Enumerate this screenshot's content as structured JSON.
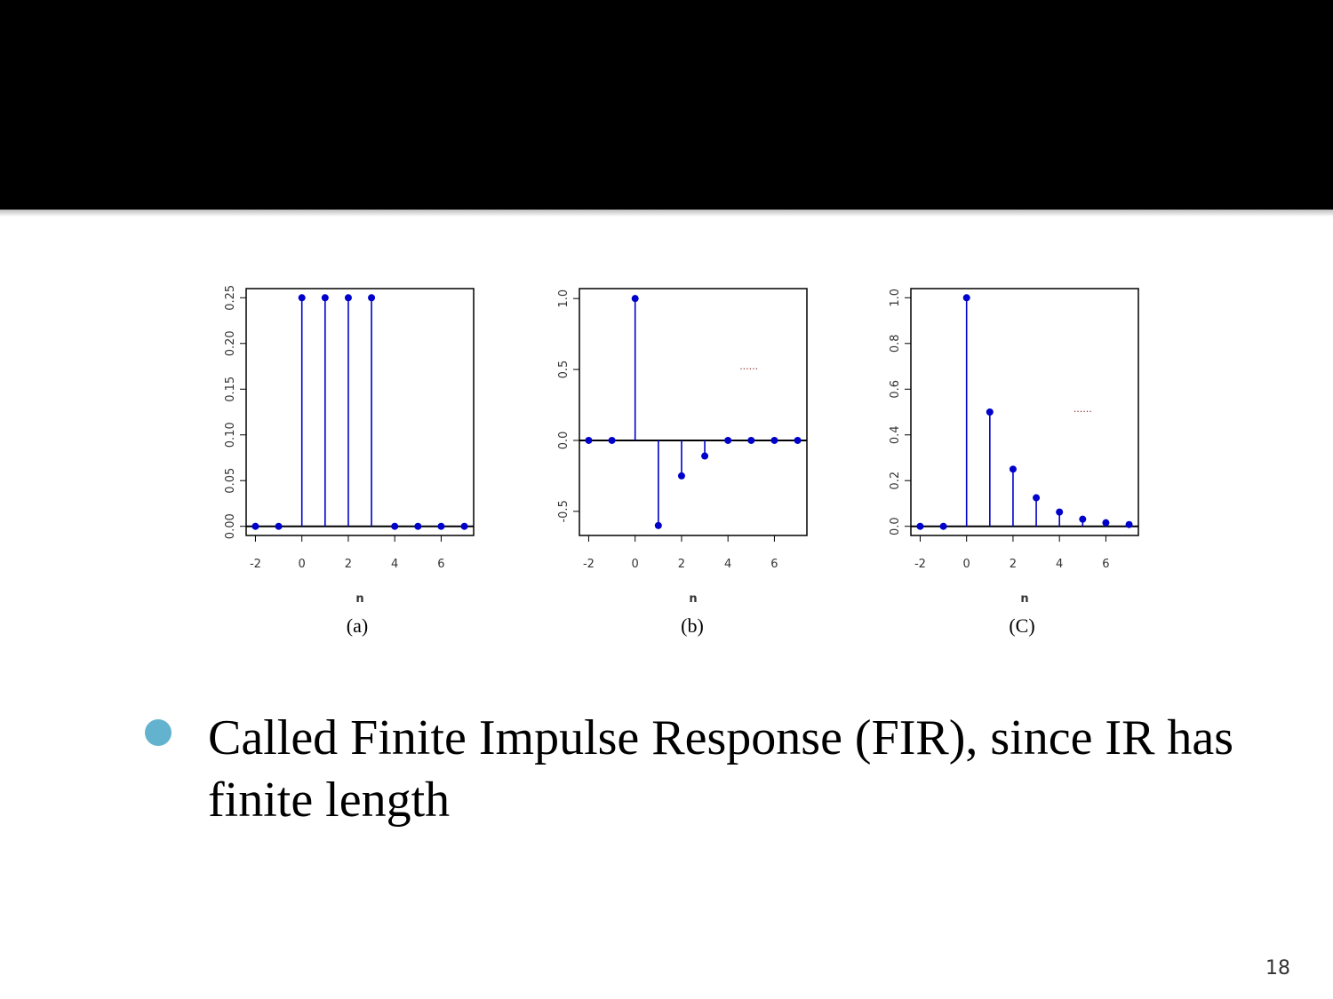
{
  "slide": {
    "bullet_text": "Called Finite Impulse Response (FIR), since IR has finite length",
    "page_number": "18",
    "bullet_color": "#63b3cf"
  },
  "chart_data": [
    {
      "type": "stem",
      "caption": "(a)",
      "xlabel": "n",
      "ylabel": "",
      "x": [
        -2,
        -1,
        0,
        1,
        2,
        3,
        4,
        5,
        6,
        7
      ],
      "y": [
        0,
        0,
        0.25,
        0.25,
        0.25,
        0.25,
        0,
        0,
        0,
        0
      ],
      "xticks": [
        -2,
        0,
        2,
        4,
        6
      ],
      "yticks": [
        "0.00",
        "0.05",
        "0.10",
        "0.15",
        "0.20",
        "0.25"
      ],
      "xlim": [
        -2.4,
        7.4
      ],
      "ylim": [
        -0.01,
        0.26
      ],
      "continuation": "",
      "color": "#0000cc"
    },
    {
      "type": "stem",
      "caption": "(b)",
      "xlabel": "n",
      "ylabel": "",
      "x": [
        -2,
        -1,
        0,
        1,
        2,
        3,
        4,
        5,
        6,
        7
      ],
      "y": [
        0,
        0,
        1.0,
        -0.6,
        -0.25,
        -0.11,
        0,
        0,
        0,
        0
      ],
      "xticks": [
        -2,
        0,
        2,
        4,
        6
      ],
      "yticks": [
        "-0.5",
        "0.0",
        "0.5",
        "1.0"
      ],
      "xlim": [
        -2.4,
        7.4
      ],
      "ylim": [
        -0.67,
        1.07
      ],
      "continuation": "......",
      "continuation_pos": [
        4.9,
        0.5
      ],
      "color": "#0000cc"
    },
    {
      "type": "stem",
      "caption": "(C)",
      "xlabel": "n",
      "ylabel": "",
      "x": [
        -2,
        -1,
        0,
        1,
        2,
        3,
        4,
        5,
        6,
        7
      ],
      "y": [
        0,
        0,
        1.0,
        0.5,
        0.25,
        0.125,
        0.0625,
        0.03125,
        0.015625,
        0.0078
      ],
      "xticks": [
        -2,
        0,
        2,
        4,
        6
      ],
      "yticks": [
        "0.0",
        "0.2",
        "0.4",
        "0.6",
        "0.8",
        "1.0"
      ],
      "xlim": [
        -2.4,
        7.4
      ],
      "ylim": [
        -0.04,
        1.04
      ],
      "continuation": "......",
      "continuation_pos": [
        5.0,
        0.5
      ],
      "color": "#0000cc"
    }
  ]
}
